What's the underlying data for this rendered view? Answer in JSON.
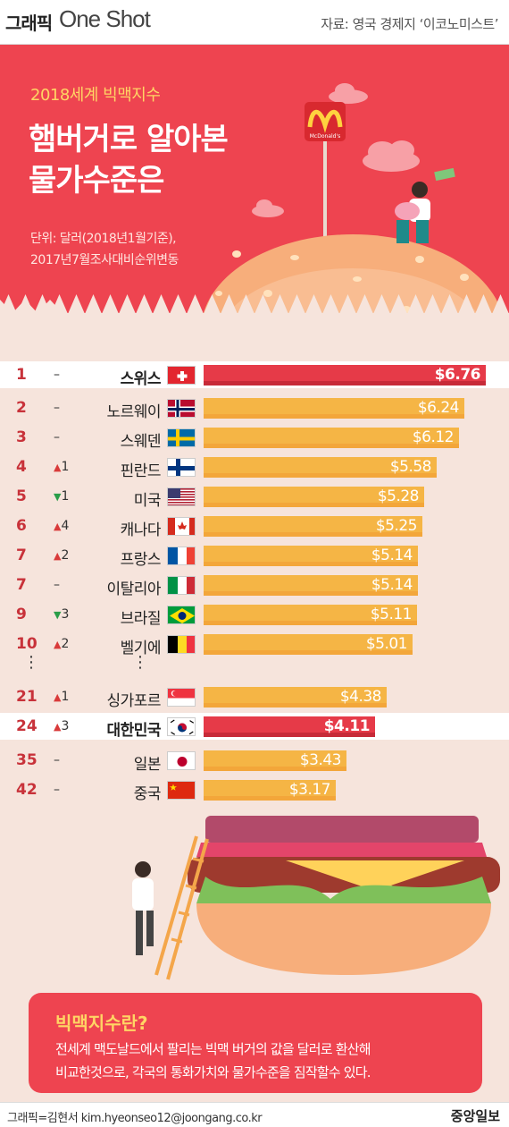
{
  "header": {
    "brand": "그래픽",
    "brand_sub": "One Shot",
    "source": "자료: 영국 경제지 ‘이코노미스트’"
  },
  "hero": {
    "eyebrow": "2018세계 빅맥지수",
    "title_line1": "햄버거로 알아본",
    "title_line2": "물가수준은",
    "unit_line1": "단위: 달러(2018년1월기준),",
    "unit_line2": "2017년7월조사대비순위변동",
    "sign_brand": "McDonald's"
  },
  "colors": {
    "hero_red": "#ee4450",
    "bar_orange": "#f5b545",
    "bar_highlight_red": "#e63a48",
    "background": "#f6e4dc"
  },
  "chart_data": {
    "type": "bar",
    "orientation": "horizontal",
    "title": "2018세계 빅맥지수",
    "unit": "달러",
    "xlim": [
      0,
      6.76
    ],
    "rows": [
      {
        "rank": "1",
        "change": "–",
        "direction": "none",
        "country": "스위스",
        "value": 6.76,
        "label": "$6.76",
        "highlight": true,
        "flag": "switzerland-flag"
      },
      {
        "rank": "2",
        "change": "–",
        "direction": "none",
        "country": "노르웨이",
        "value": 6.24,
        "label": "$6.24",
        "highlight": false,
        "flag": "norway-flag"
      },
      {
        "rank": "3",
        "change": "–",
        "direction": "none",
        "country": "스웨덴",
        "value": 6.12,
        "label": "$6.12",
        "highlight": false,
        "flag": "sweden-flag"
      },
      {
        "rank": "4",
        "change": "1",
        "direction": "up",
        "country": "핀란드",
        "value": 5.58,
        "label": "$5.58",
        "highlight": false,
        "flag": "finland-flag"
      },
      {
        "rank": "5",
        "change": "1",
        "direction": "down",
        "country": "미국",
        "value": 5.28,
        "label": "$5.28",
        "highlight": false,
        "flag": "usa-flag"
      },
      {
        "rank": "6",
        "change": "4",
        "direction": "up",
        "country": "캐나다",
        "value": 5.25,
        "label": "$5.25",
        "highlight": false,
        "flag": "canada-flag"
      },
      {
        "rank": "7",
        "change": "2",
        "direction": "up",
        "country": "프랑스",
        "value": 5.14,
        "label": "$5.14",
        "highlight": false,
        "flag": "france-flag"
      },
      {
        "rank": "7",
        "change": "–",
        "direction": "none",
        "country": "이탈리아",
        "value": 5.14,
        "label": "$5.14",
        "highlight": false,
        "flag": "italy-flag"
      },
      {
        "rank": "9",
        "change": "3",
        "direction": "down",
        "country": "브라질",
        "value": 5.11,
        "label": "$5.11",
        "highlight": false,
        "flag": "brazil-flag"
      },
      {
        "rank": "10",
        "change": "2",
        "direction": "up",
        "country": "벨기에",
        "value": 5.01,
        "label": "$5.01",
        "highlight": false,
        "flag": "belgium-flag"
      },
      {
        "rank": "21",
        "change": "1",
        "direction": "up",
        "country": "싱가포르",
        "value": 4.38,
        "label": "$4.38",
        "highlight": false,
        "flag": "singapore-flag"
      },
      {
        "rank": "24",
        "change": "3",
        "direction": "up",
        "country": "대한민국",
        "value": 4.11,
        "label": "$4.11",
        "highlight": true,
        "flag": "korea-flag"
      },
      {
        "rank": "35",
        "change": "–",
        "direction": "none",
        "country": "일본",
        "value": 3.43,
        "label": "$3.43",
        "highlight": false,
        "flag": "japan-flag"
      },
      {
        "rank": "42",
        "change": "–",
        "direction": "none",
        "country": "중국",
        "value": 3.17,
        "label": "$3.17",
        "highlight": false,
        "flag": "china-flag"
      }
    ]
  },
  "ellipsis": "⋮",
  "info": {
    "title": "빅맥지수란?",
    "line1": "전세계 맥도날드에서 팔리는 빅맥 버거의 값을 달러로 환산해",
    "line2": "비교한것으로, 각국의 통화가치와 물가수준을 짐작할수 있다."
  },
  "footer": {
    "credit": "그래픽=김현서 kim.hyeonseo12@joongang.co.kr",
    "paper": "중앙일보"
  }
}
